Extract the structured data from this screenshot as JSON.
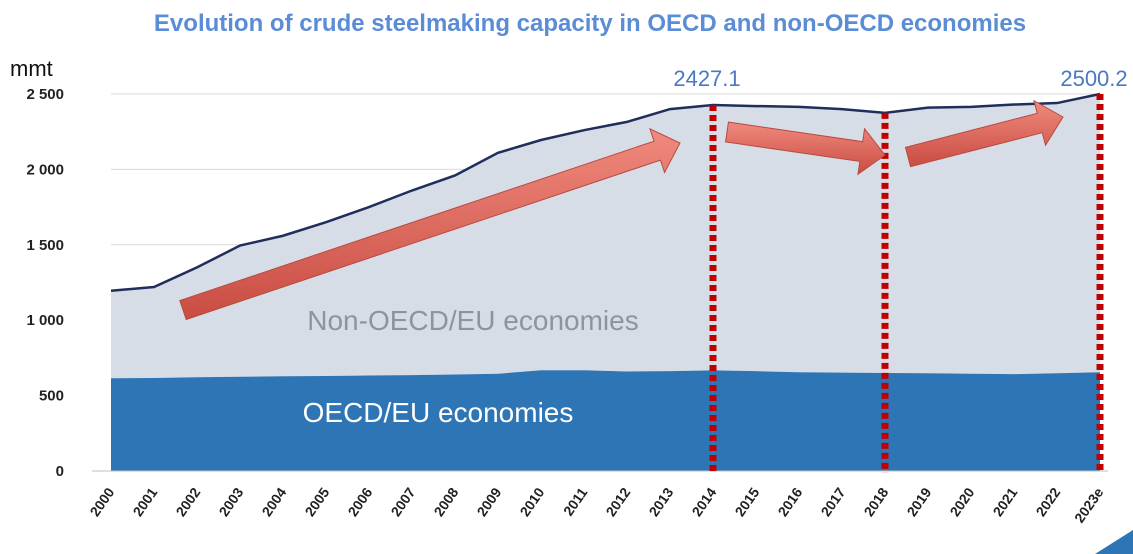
{
  "chart_data": {
    "type": "area",
    "title": "Evolution of crude steelmaking capacity in OECD and non-OECD economies",
    "ylabel": "mmt",
    "ylim": [
      0,
      2500
    ],
    "yticks": [
      0,
      500,
      1000,
      1500,
      2000,
      2500
    ],
    "ytick_labels": [
      "0",
      "500",
      "1 000",
      "1 500",
      "2 000",
      "2 500"
    ],
    "categories": [
      "2000",
      "2001",
      "2002",
      "2003",
      "2004",
      "2005",
      "2006",
      "2007",
      "2008",
      "2009",
      "2010",
      "2011",
      "2012",
      "2013",
      "2014",
      "2015",
      "2016",
      "2017",
      "2018",
      "2019",
      "2020",
      "2021",
      "2022",
      "2023e"
    ],
    "series": [
      {
        "name": "OECD/EU economies",
        "values": [
          615,
          617,
          622,
          625,
          628,
          630,
          633,
          636,
          640,
          645,
          668,
          668,
          660,
          662,
          667,
          662,
          655,
          652,
          650,
          648,
          645,
          642,
          648,
          655
        ],
        "color": "#2e75b6"
      },
      {
        "name": "Non-OECD/EU economies",
        "values": [
          580,
          603,
          728,
          870,
          932,
          1020,
          1117,
          1224,
          1320,
          1465,
          1527,
          1592,
          1655,
          1738,
          1760,
          1758,
          1760,
          1748,
          1725,
          1762,
          1770,
          1788,
          1792,
          1845
        ],
        "color": "#d7dde7"
      }
    ],
    "total_line_color": "#1f2e5a",
    "annotations": [
      {
        "text": "2427.1",
        "year": "2014"
      },
      {
        "text": "2500.2",
        "year": "2023e"
      }
    ],
    "markers": [
      "2014",
      "2018",
      "2023e"
    ],
    "marker_color": "#c00000",
    "arrow_color": "#e06a5c"
  }
}
